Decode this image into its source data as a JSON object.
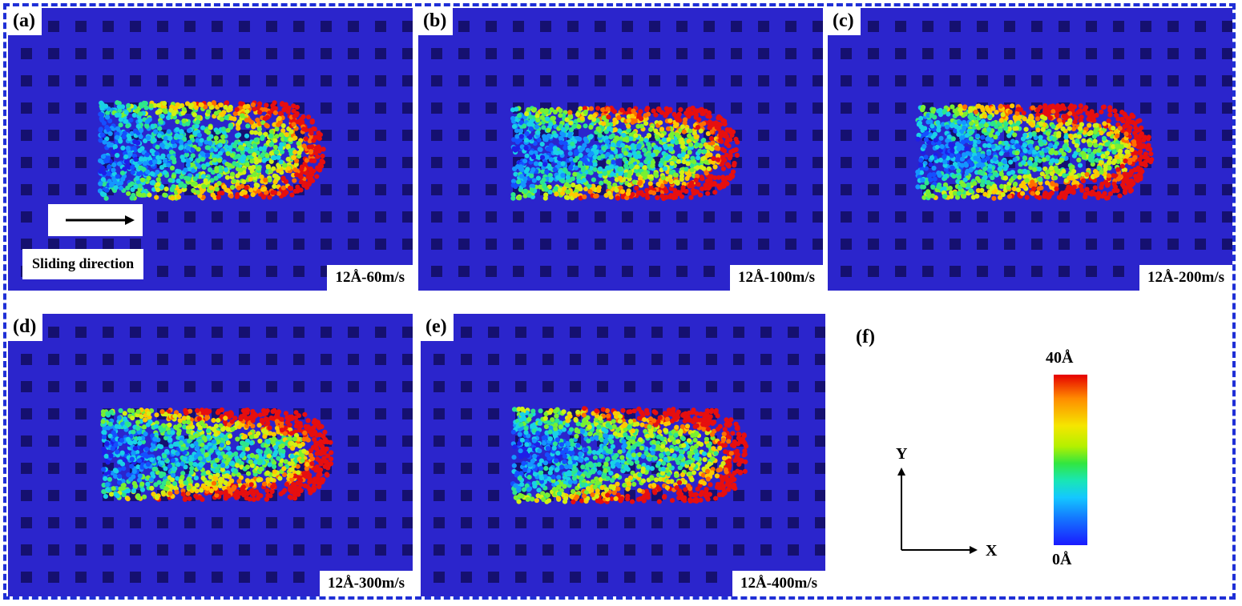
{
  "figure": {
    "colorbar": {
      "max_label": "40Å",
      "min_label": "0Å",
      "colors": [
        "#e60000",
        "#ff8c00",
        "#f5e600",
        "#32e640",
        "#14c8ff",
        "#1a1aff"
      ]
    },
    "axes": {
      "x_label": "X",
      "y_label": "Y"
    },
    "sliding_direction_label": "Sliding direction",
    "panels": [
      {
        "label": "(a)",
        "caption": "12Å-60m/s"
      },
      {
        "label": "(b)",
        "caption": "12Å-100m/s"
      },
      {
        "label": "(c)",
        "caption": "12Å-200m/s"
      },
      {
        "label": "(d)",
        "caption": "12Å-300m/s"
      },
      {
        "label": "(e)",
        "caption": "12Å-400m/s"
      },
      {
        "label": "(f)"
      }
    ]
  }
}
